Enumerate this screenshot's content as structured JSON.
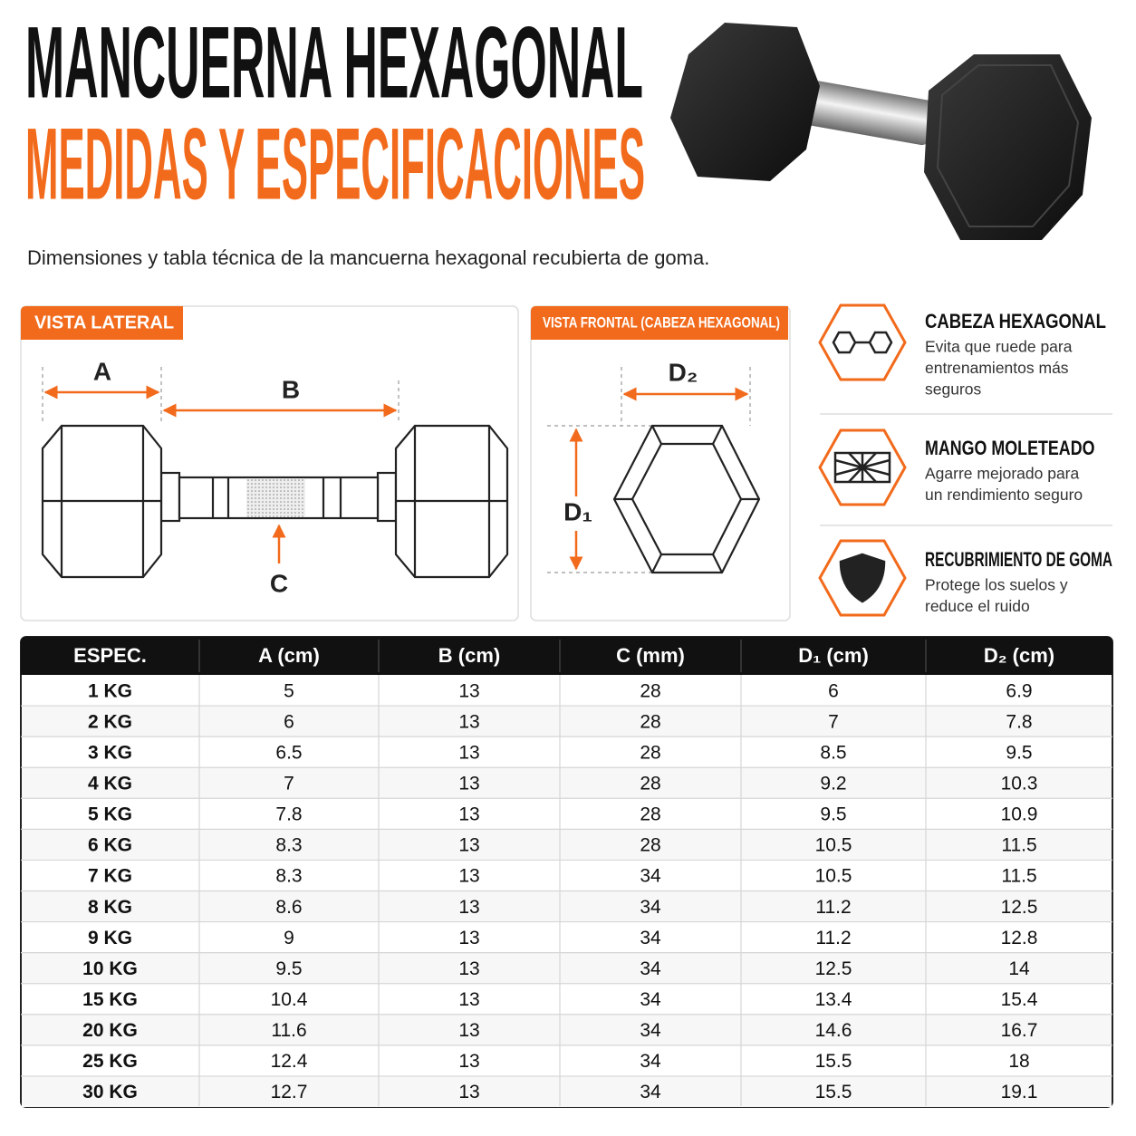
{
  "header": {
    "title": "MANCUERNA HEXAGONAL",
    "subtitle": "MEDIDAS Y ESPECIFICACIONES",
    "description": "Dimensiones y tabla técnica de la mancuerna hexagonal recubierta de goma."
  },
  "side_view": {
    "label": "VISTA LATERAL",
    "a": "A",
    "b": "B",
    "c": "C"
  },
  "front_view": {
    "label": "VISTA FRONTAL (CABEZA HEXAGONAL)",
    "d2": "D₂",
    "d1": "D₁"
  },
  "features": [
    {
      "title": "CABEZA HEXAGONAL",
      "lines": [
        "Evita que ruede para",
        "entrenamientos más",
        "seguros"
      ]
    },
    {
      "title": "MANGO MOLETEADO",
      "lines": [
        "Agarre mejorado para",
        "un rendimiento seguro"
      ]
    },
    {
      "title": "RECUBRIMIENTO DE GOMA",
      "lines": [
        "Protege los suelos y",
        "reduce el ruido"
      ]
    }
  ],
  "table": {
    "columns": [
      "ESPEC.",
      "A (cm)",
      "B (cm)",
      "C (mm)",
      "D₁ (cm)",
      "D₂ (cm)"
    ],
    "rows": [
      [
        "1 KG",
        "5",
        "13",
        "28",
        "6",
        "6.9"
      ],
      [
        "2 KG",
        "6",
        "13",
        "28",
        "7",
        "7.8"
      ],
      [
        "3 KG",
        "6.5",
        "13",
        "28",
        "8.5",
        "9.5"
      ],
      [
        "4 KG",
        "7",
        "13",
        "28",
        "9.2",
        "10.3"
      ],
      [
        "5 KG",
        "7.8",
        "13",
        "28",
        "9.5",
        "10.9"
      ],
      [
        "6 KG",
        "8.3",
        "13",
        "28",
        "10.5",
        "11.5"
      ],
      [
        "7 KG",
        "8.3",
        "13",
        "34",
        "10.5",
        "11.5"
      ],
      [
        "8 KG",
        "8.6",
        "13",
        "34",
        "11.2",
        "12.5"
      ],
      [
        "9 KG",
        "9",
        "13",
        "34",
        "11.2",
        "12.8"
      ],
      [
        "10 KG",
        "9.5",
        "13",
        "34",
        "12.5",
        "14"
      ],
      [
        "15 KG",
        "10.4",
        "13",
        "34",
        "13.4",
        "15.4"
      ],
      [
        "20 KG",
        "11.6",
        "13",
        "34",
        "14.6",
        "16.7"
      ],
      [
        "25 KG",
        "12.4",
        "13",
        "34",
        "15.5",
        "18"
      ],
      [
        "30 KG",
        "12.7",
        "13",
        "34",
        "15.5",
        "19.1"
      ]
    ]
  }
}
